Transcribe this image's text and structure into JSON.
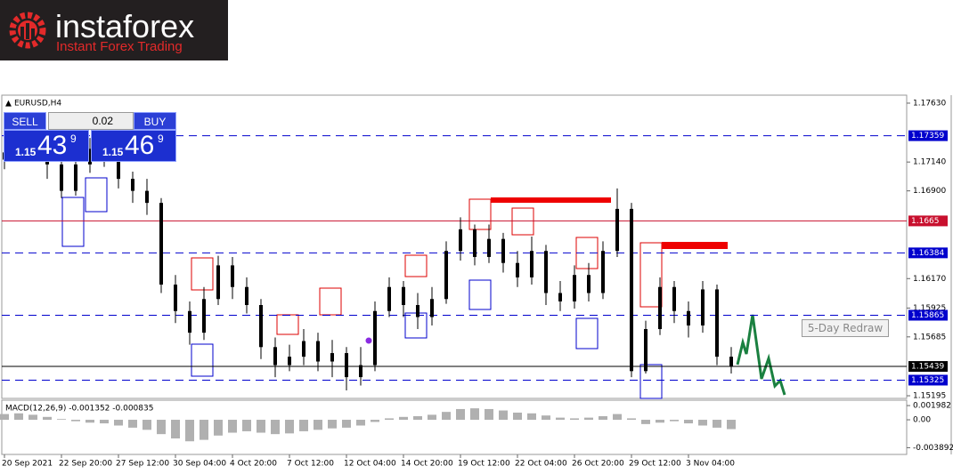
{
  "logo": {
    "name": "instaforex",
    "tagline": "Instant Forex Trading"
  },
  "symbol": "EURUSD,H4",
  "trade_panel": {
    "sell": "SELL",
    "buy": "BUY",
    "lot": "0.02",
    "bid": {
      "big": "1.15",
      "pips": "43",
      "point": "9"
    },
    "ask": {
      "big": "1.15",
      "pips": "46",
      "point": "9"
    }
  },
  "button": "5-Day Redraw",
  "chart_data": [
    {
      "type": "candlestick",
      "categories": [
        "20 Sep 2021",
        null,
        null,
        null,
        "22 Sep 20:00",
        null,
        null,
        null,
        "27 Sep 12:00",
        null,
        null,
        null,
        "30 Sep 04:00",
        null,
        null,
        null,
        "4 Oct 20:00",
        null,
        null,
        null,
        "7 Oct 12:00",
        null,
        null,
        null,
        "12 Oct 04:00",
        null,
        null,
        null,
        "14 Oct 20:00",
        null,
        null,
        null,
        "19 Oct 12:00",
        null,
        null,
        null,
        "22 Oct 04:00",
        null,
        null,
        null,
        "26 Oct 20:00",
        null,
        null,
        null,
        "29 Oct 12:00",
        null,
        null,
        null,
        "3 Nov 04:00",
        null,
        null,
        null
      ],
      "open": [
        1.1716,
        1.1722,
        1.1735,
        1.173,
        1.1712,
        1.169,
        1.1712,
        1.1725,
        1.1718,
        1.17,
        1.169,
        1.168,
        1.1612,
        1.159,
        1.1572,
        1.16,
        1.1628,
        1.161,
        1.1595,
        1.156,
        1.1545,
        1.1552,
        1.1565,
        1.1548,
        1.1555,
        1.1535,
        1.1545,
        1.159,
        1.161,
        1.1595,
        1.1585,
        1.16,
        1.164,
        1.1658,
        1.1635,
        1.165,
        1.163,
        1.1618,
        1.164,
        1.1605,
        1.1598,
        1.162,
        1.1605,
        1.164,
        1.1675,
        1.154,
        1.1575,
        1.161,
        1.159,
        1.1578,
        1.1608,
        1.1552
      ],
      "high": [
        1.1738,
        1.1745,
        1.1748,
        1.1738,
        1.1718,
        1.1722,
        1.1734,
        1.174,
        1.1722,
        1.1706,
        1.17,
        1.1684,
        1.162,
        1.1598,
        1.161,
        1.1636,
        1.1635,
        1.1618,
        1.16,
        1.1568,
        1.1562,
        1.1575,
        1.1572,
        1.1566,
        1.156,
        1.156,
        1.1598,
        1.1618,
        1.1615,
        1.1605,
        1.161,
        1.1648,
        1.1668,
        1.1662,
        1.1662,
        1.1655,
        1.164,
        1.1652,
        1.1645,
        1.1615,
        1.1628,
        1.163,
        1.1648,
        1.1692,
        1.168,
        1.1582,
        1.1618,
        1.1615,
        1.1598,
        1.1615,
        1.1612,
        1.156
      ],
      "low": [
        1.1708,
        1.1715,
        1.172,
        1.17,
        1.1684,
        1.1686,
        1.1705,
        1.171,
        1.1692,
        1.168,
        1.167,
        1.1605,
        1.158,
        1.1562,
        1.1566,
        1.1595,
        1.16,
        1.1588,
        1.155,
        1.1535,
        1.154,
        1.1545,
        1.154,
        1.1535,
        1.1524,
        1.1528,
        1.154,
        1.1585,
        1.1585,
        1.1575,
        1.1578,
        1.1596,
        1.1632,
        1.1628,
        1.163,
        1.1622,
        1.161,
        1.1612,
        1.1595,
        1.159,
        1.1592,
        1.1598,
        1.16,
        1.1635,
        1.1535,
        1.1538,
        1.157,
        1.158,
        1.1568,
        1.1572,
        1.1545,
        1.1538
      ],
      "close": [
        1.1722,
        1.1735,
        1.173,
        1.1712,
        1.169,
        1.1712,
        1.1725,
        1.1718,
        1.17,
        1.169,
        1.168,
        1.1612,
        1.159,
        1.1572,
        1.16,
        1.1628,
        1.161,
        1.1595,
        1.156,
        1.1545,
        1.1552,
        1.1565,
        1.1548,
        1.1555,
        1.1535,
        1.1545,
        1.159,
        1.161,
        1.1595,
        1.1585,
        1.16,
        1.164,
        1.1658,
        1.1635,
        1.165,
        1.163,
        1.1618,
        1.164,
        1.1605,
        1.1598,
        1.162,
        1.1605,
        1.164,
        1.1675,
        1.154,
        1.1575,
        1.161,
        1.159,
        1.1578,
        1.1608,
        1.1552,
        1.1544
      ],
      "color": "#000000",
      "ylim": [
        1.15173,
        1.17689
      ],
      "yticks": [
        {
          "value": 1.1763,
          "label": "1.17630"
        },
        {
          "value": 1.1714,
          "label": "1.17140"
        },
        {
          "value": 1.169,
          "label": "1.16900"
        },
        {
          "value": 1.1617,
          "label": "1.16170"
        },
        {
          "value": 1.15925,
          "label": "1.15925"
        },
        {
          "value": 1.15685,
          "label": "1.15685"
        },
        {
          "value": 1.15195,
          "label": "1.15195"
        }
      ],
      "levels": [
        {
          "value": 1.17359,
          "color": "#0000cd",
          "style": "dashed"
        },
        {
          "value": 1.1665,
          "color": "#c8102e",
          "style": "solid"
        },
        {
          "value": 1.16384,
          "color": "#0000cd",
          "style": "dashed"
        },
        {
          "value": 1.15865,
          "color": "#0000cd",
          "style": "dashed"
        },
        {
          "value": 1.15439,
          "color": "#000000",
          "style": "solid"
        },
        {
          "value": 1.15325,
          "color": "#0000cd",
          "style": "dashed"
        }
      ]
    },
    {
      "type": "histogram",
      "title": "MACD(12,26,9) -0.001352 -0.000835",
      "values": [
        0.0008,
        0.0009,
        0.0007,
        0.0004,
        0.0001,
        -0.0002,
        -0.0004,
        -0.0005,
        -0.0008,
        -0.0011,
        -0.0014,
        -0.002,
        -0.0026,
        -0.003,
        -0.0028,
        -0.0022,
        -0.0018,
        -0.0016,
        -0.0018,
        -0.002,
        -0.0019,
        -0.0016,
        -0.0014,
        -0.0012,
        -0.0011,
        -0.0008,
        -0.0003,
        0.0002,
        0.0004,
        0.0005,
        0.0007,
        0.0011,
        0.0015,
        0.0016,
        0.0015,
        0.0013,
        0.001,
        0.0009,
        0.0006,
        0.0003,
        0.0002,
        0.0003,
        0.0005,
        0.0008,
        0.0002,
        -0.0006,
        -0.0004,
        -0.0002,
        -0.0005,
        -0.0008,
        -0.0011,
        -0.0013
      ],
      "color": "#b0b0b0",
      "ylim": [
        -0.00471,
        0.00261
      ],
      "yticks": [
        0.001982,
        {
          "value": 0,
          "label": "0.00"
        },
        -0.003892
      ]
    }
  ]
}
